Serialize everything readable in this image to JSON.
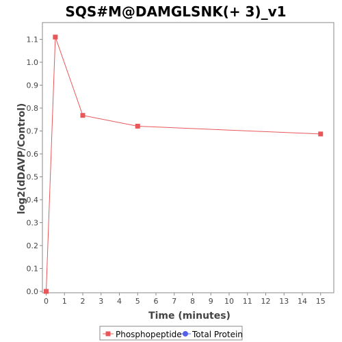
{
  "chart_data": {
    "type": "line",
    "title": "SQS#M@DAMGLSNK(+ 3)_v1",
    "xlabel": "Time (minutes)",
    "ylabel": "log2(dDAVP/Control)",
    "xlim": [
      0,
      15.8
    ],
    "ylim": [
      0.0,
      1.17
    ],
    "xticks": [
      0,
      1,
      2,
      3,
      4,
      5,
      6,
      7,
      8,
      9,
      10,
      11,
      12,
      13,
      14,
      15
    ],
    "yticks": [
      0.0,
      0.1,
      0.2,
      0.3,
      0.4,
      0.5,
      0.6,
      0.7,
      0.8,
      0.9,
      1.0,
      1.1
    ],
    "ytick_labels": [
      "0.0",
      "0.1",
      "0.2",
      "0.3",
      "0.4",
      "0.5",
      "0.6",
      "0.7",
      "0.8",
      "0.9",
      "1.0",
      "1.1"
    ],
    "grid": false,
    "legend_position": "bottom",
    "series": [
      {
        "name": "Phosphopeptide",
        "color": "#e8575a",
        "marker": "square",
        "x": [
          0,
          0.5,
          2,
          5,
          15
        ],
        "y": [
          0.0,
          1.11,
          0.768,
          0.721,
          0.687
        ]
      },
      {
        "name": "Total Protein",
        "color": "#5560e8",
        "marker": "circle",
        "x": [],
        "y": []
      }
    ]
  }
}
